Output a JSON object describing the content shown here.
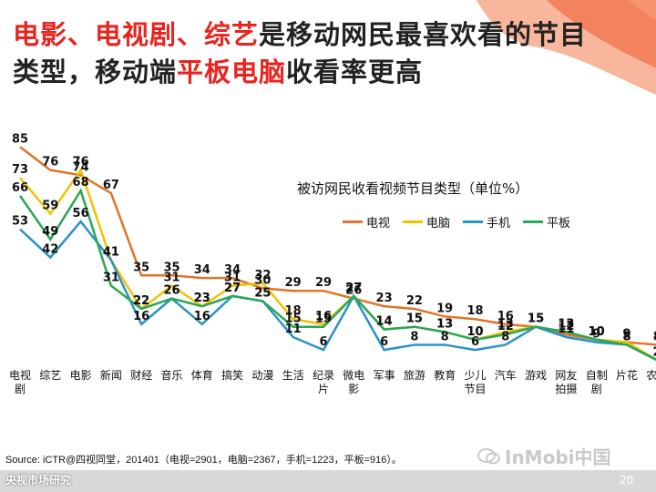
{
  "title": {
    "part1": "电影、电视剧、综艺",
    "part2": "是移动网民最喜欢看的节目类型，移动端",
    "part3": "平板电脑",
    "part4": "收看率更高"
  },
  "source": "Source: iCTR@四视同堂，201401（电视=2901，电脑=2367，手机=1223，平板=916）。",
  "watermark_left": "央视市场研究",
  "watermark_right": "InMobi中国",
  "page_number": "20",
  "colors": {
    "tv": "#e0742a",
    "pc": "#f2c200",
    "mobile": "#2a93c6",
    "tablet": "#2aa655",
    "accent": "#e8241f"
  },
  "chart_data": {
    "type": "line",
    "title": "被访网民收看视频节目类型（单位%）",
    "categories": [
      "电视剧",
      "综艺",
      "电影",
      "新闻",
      "财经",
      "音乐",
      "体育",
      "搞笑",
      "动漫",
      "生活",
      "纪录片",
      "微电影",
      "军事",
      "旅游",
      "教育",
      "少儿节目",
      "汽车",
      "游戏",
      "网友拍摄",
      "自制剧",
      "片花",
      "农业"
    ],
    "series": [
      {
        "name": "电视",
        "color": "#e0742a",
        "values": [
          85,
          76,
          74,
          67,
          35,
          35,
          34,
          34,
          30,
          29,
          29,
          26,
          23,
          22,
          19,
          18,
          16,
          15,
          12,
          10,
          9,
          8
        ]
      },
      {
        "name": "电脑",
        "color": "#f2c200",
        "values": [
          73,
          59,
          76,
          41,
          22,
          31,
          23,
          31,
          32,
          18,
          16,
          27,
          14,
          15,
          13,
          10,
          13,
          15,
          13,
          10,
          9,
          2
        ]
      },
      {
        "name": "手机",
        "color": "#2a93c6",
        "values": [
          53,
          42,
          56,
          41,
          16,
          26,
          16,
          27,
          25,
          11,
          6,
          27,
          6,
          8,
          8,
          6,
          8,
          15,
          11,
          9,
          8,
          2
        ]
      },
      {
        "name": "平板",
        "color": "#2aa655",
        "values": [
          66,
          49,
          68,
          31,
          22,
          26,
          23,
          27,
          25,
          15,
          15,
          27,
          14,
          15,
          13,
          10,
          12,
          15,
          13,
          10,
          8,
          2
        ]
      }
    ],
    "ylim": [
      0,
      90
    ],
    "grid": false,
    "legend": "top-center"
  }
}
